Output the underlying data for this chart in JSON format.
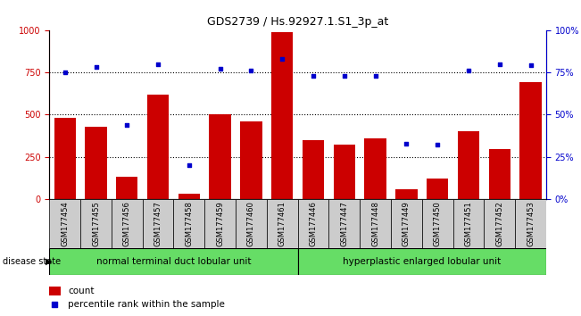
{
  "title": "GDS2739 / Hs.92927.1.S1_3p_at",
  "samples": [
    "GSM177454",
    "GSM177455",
    "GSM177456",
    "GSM177457",
    "GSM177458",
    "GSM177459",
    "GSM177460",
    "GSM177461",
    "GSM177446",
    "GSM177447",
    "GSM177448",
    "GSM177449",
    "GSM177450",
    "GSM177451",
    "GSM177452",
    "GSM177453"
  ],
  "counts": [
    480,
    430,
    130,
    620,
    30,
    500,
    460,
    990,
    350,
    320,
    360,
    60,
    120,
    400,
    295,
    690
  ],
  "percentiles": [
    75,
    78,
    44,
    80,
    20,
    77,
    76,
    83,
    73,
    73,
    73,
    33,
    32,
    76,
    80,
    79
  ],
  "group1_label": "normal terminal duct lobular unit",
  "group2_label": "hyperplastic enlarged lobular unit",
  "group1_count": 8,
  "group2_count": 8,
  "bar_color": "#cc0000",
  "dot_color": "#0000cc",
  "ylim_left": [
    0,
    1000
  ],
  "ylim_right": [
    0,
    100
  ],
  "yticks_left": [
    0,
    250,
    500,
    750,
    1000
  ],
  "yticks_right": [
    0,
    25,
    50,
    75,
    100
  ],
  "group1_color": "#66dd66",
  "group2_color": "#66dd66",
  "tick_bg_color": "#cccccc",
  "legend_count_label": "count",
  "legend_pct_label": "percentile rank within the sample",
  "bg_color": "#ffffff"
}
